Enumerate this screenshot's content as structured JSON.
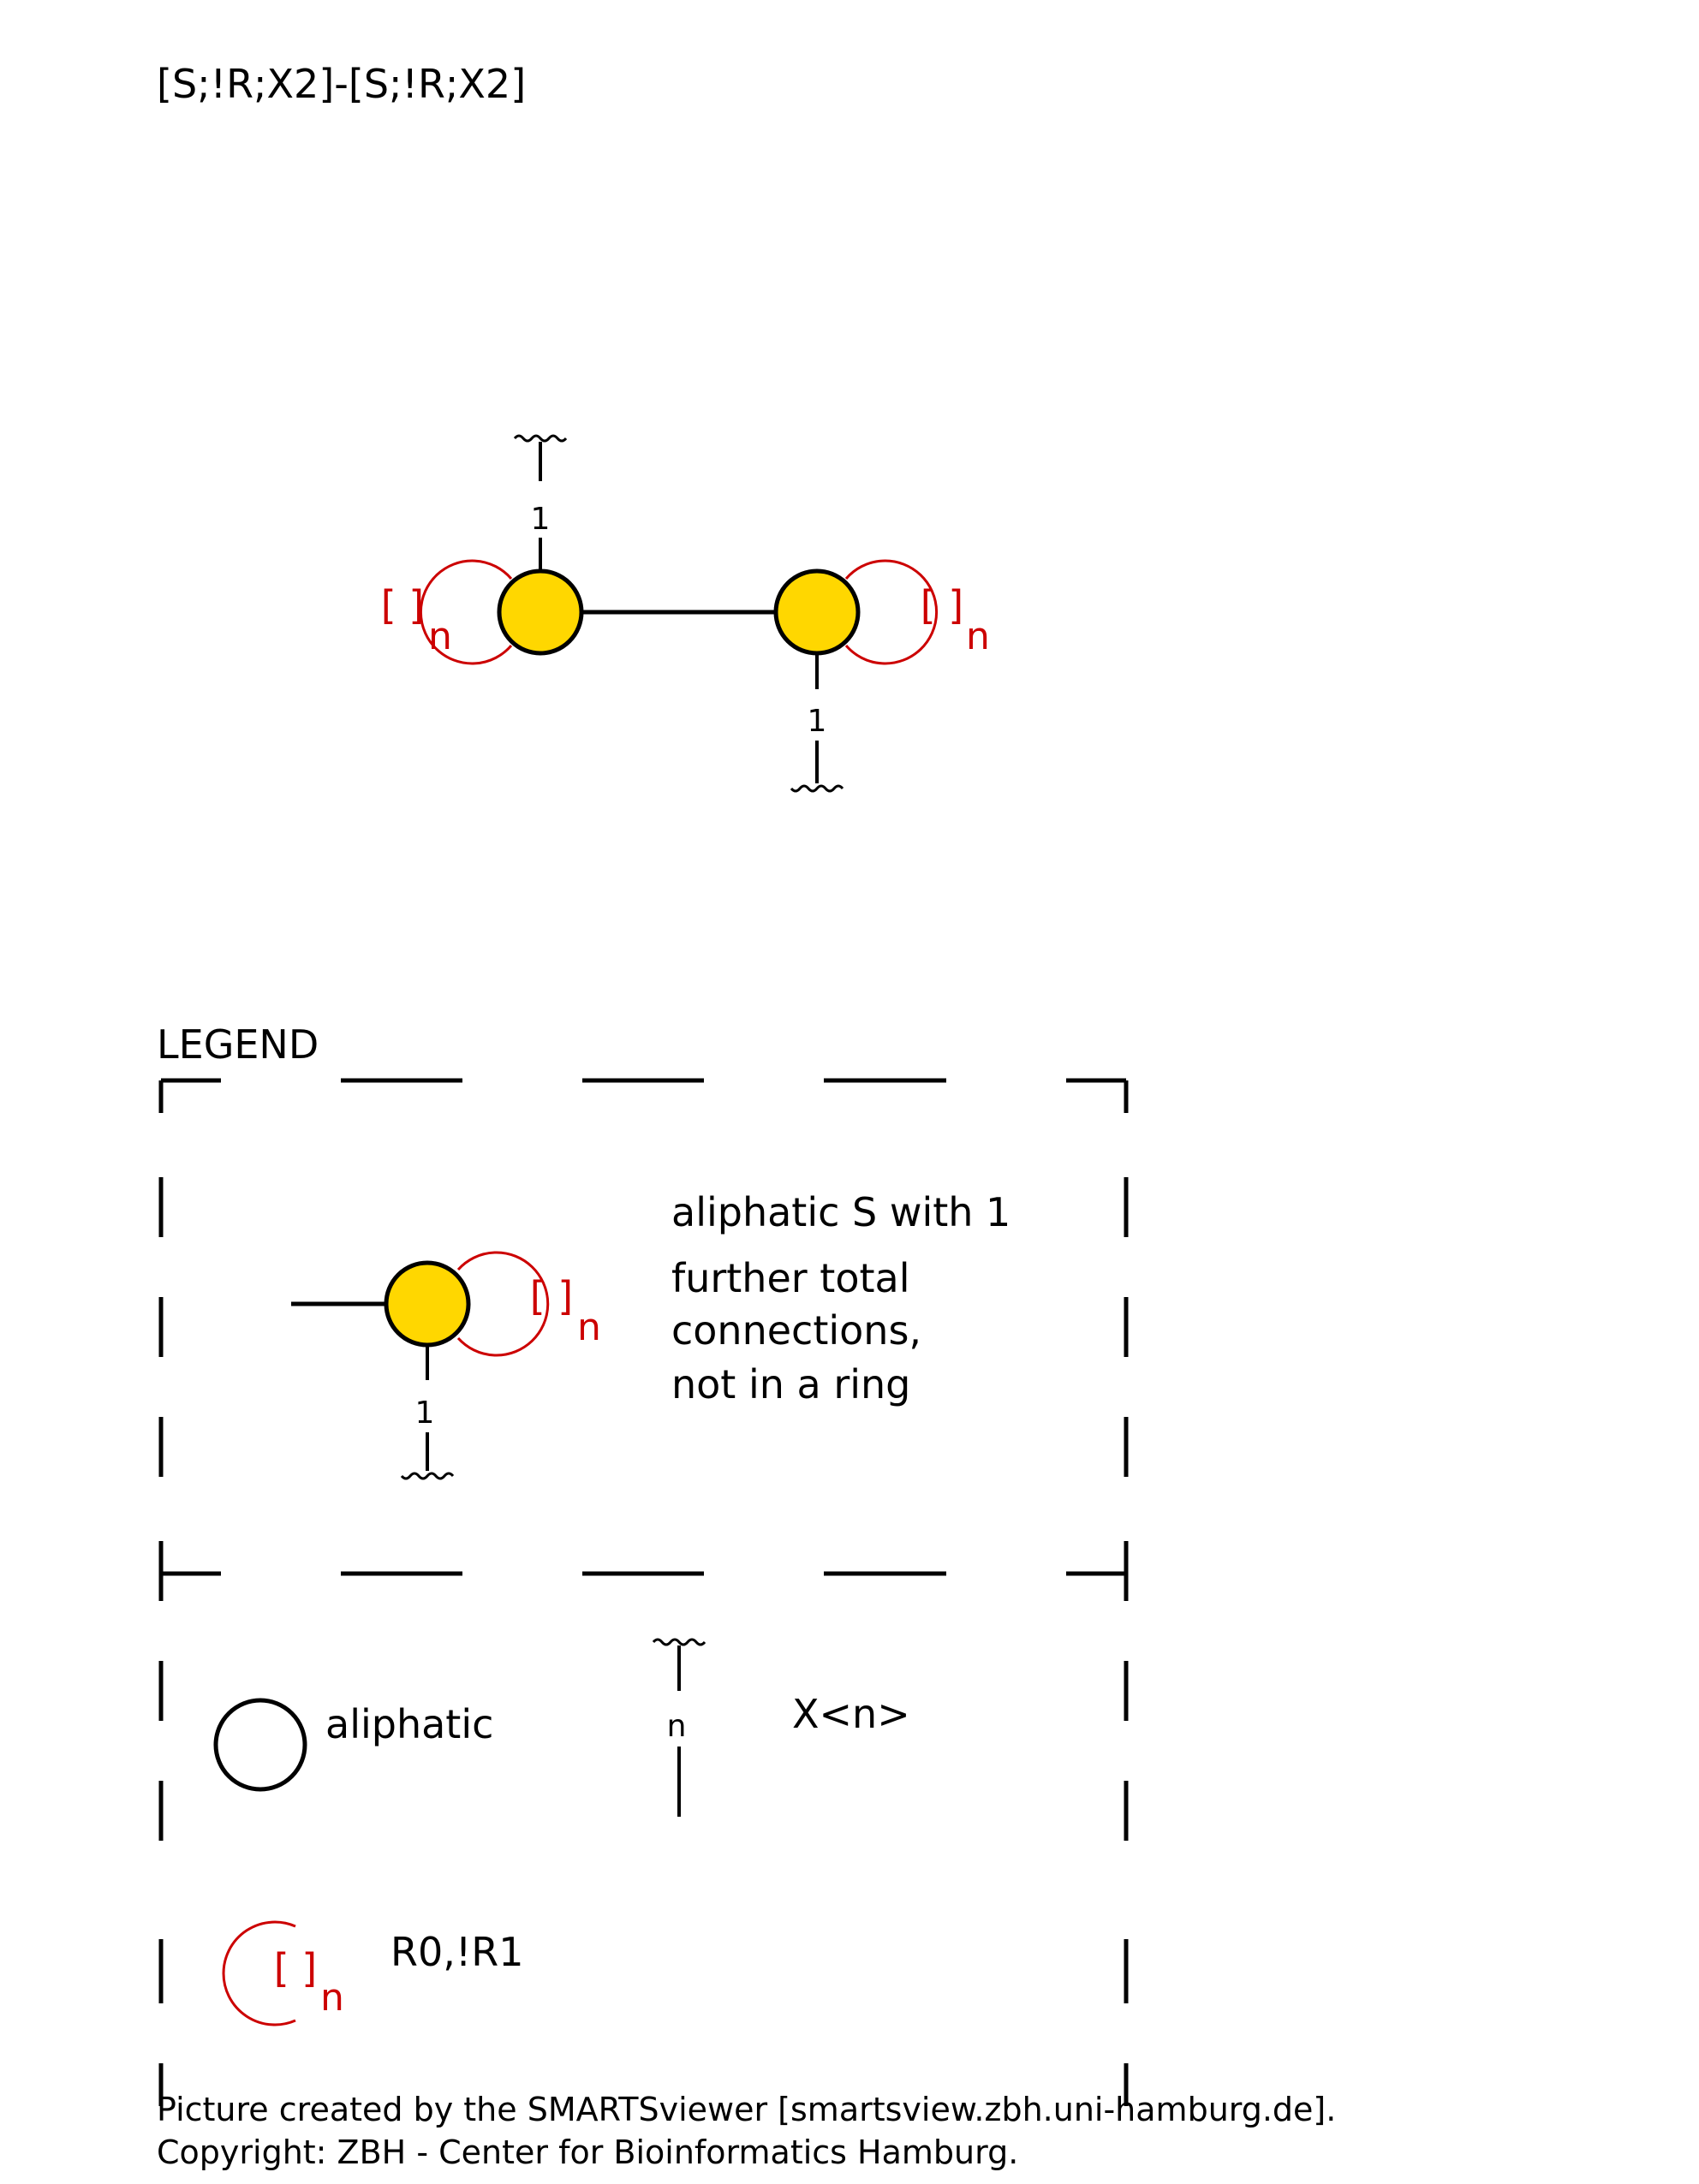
{
  "smarts": "[S;!R;X2]-[S;!R;X2]",
  "diagram": {
    "atom_color": "#FFD700",
    "ring_color": "#cc0000",
    "atoms": [
      {
        "element": "S",
        "connection_label": "1",
        "ring_bracket": "[ ]",
        "ring_subscript": "n"
      },
      {
        "element": "S",
        "connection_label": "1",
        "ring_bracket": "[ ]",
        "ring_subscript": "n"
      }
    ]
  },
  "legend": {
    "title": "LEGEND",
    "atom_entry": {
      "connection_label": "1",
      "ring_bracket": "[ ]",
      "ring_subscript": "n",
      "description_lines": [
        "aliphatic S with 1",
        "further total",
        "connections,",
        "not in a ring"
      ]
    },
    "aliphatic_label": "aliphatic",
    "x_symbol_label": "n",
    "x_text": "X<n>",
    "ring_bracket": "[ ]",
    "ring_subscript": "n",
    "ring_text": "R0,!R1"
  },
  "footer": {
    "line1": "Picture created by the SMARTSviewer [smartsview.zbh.uni-hamburg.de].",
    "line2": "Copyright: ZBH - Center for Bioinformatics Hamburg."
  }
}
